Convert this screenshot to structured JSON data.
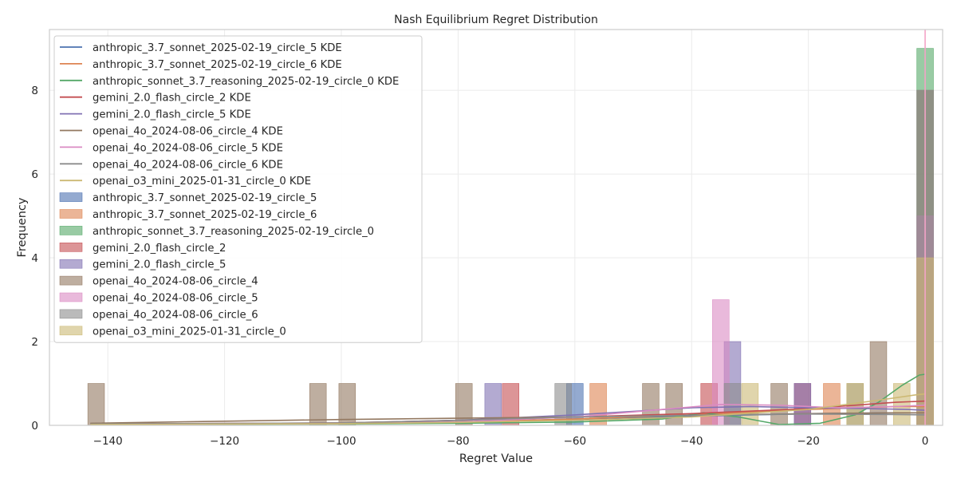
{
  "chart_data": {
    "type": "histogram",
    "title": "Nash Equilibrium Regret Distribution",
    "xlabel": "Regret Value",
    "ylabel": "Frequency",
    "xlim": [
      -150,
      3
    ],
    "ylim": [
      0,
      9.45
    ],
    "xticks": [
      -140,
      -120,
      -100,
      -80,
      -60,
      -40,
      -20,
      0
    ],
    "xtick_labels": [
      "−140",
      "−120",
      "−100",
      "−80",
      "−60",
      "−40",
      "−20",
      "0"
    ],
    "yticks": [
      0,
      2,
      4,
      6,
      8
    ],
    "ytick_labels": [
      "0",
      "2",
      "4",
      "6",
      "8"
    ],
    "grid": true,
    "legend_position": "top-left",
    "vertical_line_at": 0,
    "series": [
      {
        "name": "anthropic_3.7_sonnet_2025-02-19_circle_5",
        "kde_label": "anthropic_3.7_sonnet_2025-02-19_circle_5 KDE",
        "color": "#4c72b0",
        "bars": [
          {
            "x": -60,
            "count": 1
          },
          {
            "x": 0,
            "count": 4
          }
        ],
        "kde": [
          [
            -143,
            0.03
          ],
          [
            -100,
            0.05
          ],
          [
            -80,
            0.08
          ],
          [
            -60,
            0.15
          ],
          [
            -40,
            0.22
          ],
          [
            -20,
            0.28
          ],
          [
            -5,
            0.3
          ],
          [
            0,
            0.3
          ]
        ]
      },
      {
        "name": "anthropic_3.7_sonnet_2025-02-19_circle_6",
        "kde_label": "anthropic_3.7_sonnet_2025-02-19_circle_6 KDE",
        "color": "#dd8452",
        "bars": [
          {
            "x": -56,
            "count": 1
          },
          {
            "x": -16,
            "count": 1
          },
          {
            "x": 0,
            "count": 4
          }
        ],
        "kde": [
          [
            -143,
            0.02
          ],
          [
            -100,
            0.04
          ],
          [
            -80,
            0.08
          ],
          [
            -60,
            0.15
          ],
          [
            -40,
            0.25
          ],
          [
            -20,
            0.38
          ],
          [
            -5,
            0.45
          ],
          [
            0,
            0.45
          ]
        ]
      },
      {
        "name": "anthropic_sonnet_3.7_reasoning_2025-02-19_circle_0",
        "kde_label": "anthropic_sonnet_3.7_reasoning_2025-02-19_circle_0 KDE",
        "color": "#55a868",
        "bars": [
          {
            "x": 0,
            "count": 9
          }
        ],
        "kde": [
          [
            -143,
            0.02
          ],
          [
            -100,
            0.03
          ],
          [
            -80,
            0.05
          ],
          [
            -60,
            0.08
          ],
          [
            -45,
            0.15
          ],
          [
            -38,
            0.3
          ],
          [
            -32,
            0.2
          ],
          [
            -25,
            0.02
          ],
          [
            -18,
            0.05
          ],
          [
            -12,
            0.25
          ],
          [
            -8,
            0.55
          ],
          [
            -4,
            0.95
          ],
          [
            -1,
            1.2
          ],
          [
            0,
            1.22
          ]
        ]
      },
      {
        "name": "gemini_2.0_flash_circle_2",
        "kde_label": "gemini_2.0_flash_circle_2 KDE",
        "color": "#c44e52",
        "bars": [
          {
            "x": -71,
            "count": 1
          },
          {
            "x": -37,
            "count": 1
          },
          {
            "x": -21,
            "count": 1
          },
          {
            "x": 0,
            "count": 4
          }
        ],
        "kde": [
          [
            -143,
            0.03
          ],
          [
            -100,
            0.06
          ],
          [
            -80,
            0.12
          ],
          [
            -60,
            0.2
          ],
          [
            -40,
            0.28
          ],
          [
            -20,
            0.4
          ],
          [
            -5,
            0.55
          ],
          [
            0,
            0.58
          ]
        ]
      },
      {
        "name": "gemini_2.0_flash_circle_5",
        "kde_label": "gemini_2.0_flash_circle_5 KDE",
        "color": "#8172b3",
        "bars": [
          {
            "x": -74,
            "count": 1
          },
          {
            "x": -33,
            "count": 2
          },
          {
            "x": -21,
            "count": 1
          },
          {
            "x": 0,
            "count": 5
          }
        ],
        "kde": [
          [
            -143,
            0.03
          ],
          [
            -100,
            0.05
          ],
          [
            -80,
            0.12
          ],
          [
            -60,
            0.25
          ],
          [
            -40,
            0.42
          ],
          [
            -30,
            0.45
          ],
          [
            -20,
            0.42
          ],
          [
            -10,
            0.4
          ],
          [
            -3,
            0.38
          ],
          [
            0,
            0.36
          ]
        ]
      },
      {
        "name": "openai_4o_2024-08-06_circle_4",
        "kde_label": "openai_4o_2024-08-06_circle_4 KDE",
        "color": "#937860",
        "bars": [
          {
            "x": -142,
            "count": 1
          },
          {
            "x": -104,
            "count": 1
          },
          {
            "x": -99,
            "count": 1
          },
          {
            "x": -79,
            "count": 1
          },
          {
            "x": -47,
            "count": 1
          },
          {
            "x": -43,
            "count": 1
          },
          {
            "x": -25,
            "count": 1
          },
          {
            "x": -8,
            "count": 2
          },
          {
            "x": 0,
            "count": 8
          }
        ],
        "kde": [
          [
            -143,
            0.05
          ],
          [
            -120,
            0.1
          ],
          [
            -100,
            0.14
          ],
          [
            -80,
            0.17
          ],
          [
            -60,
            0.2
          ],
          [
            -40,
            0.24
          ],
          [
            -20,
            0.28
          ],
          [
            -5,
            0.3
          ],
          [
            0,
            0.3
          ]
        ]
      },
      {
        "name": "openai_4o_2024-08-06_circle_5",
        "kde_label": "openai_4o_2024-08-06_circle_5 KDE",
        "color": "#da8bc3",
        "bars": [
          {
            "x": -35,
            "count": 3
          },
          {
            "x": 0,
            "count": 5
          }
        ],
        "kde": [
          [
            -143,
            0.02
          ],
          [
            -100,
            0.04
          ],
          [
            -80,
            0.08
          ],
          [
            -60,
            0.2
          ],
          [
            -45,
            0.38
          ],
          [
            -35,
            0.5
          ],
          [
            -25,
            0.48
          ],
          [
            -15,
            0.42
          ],
          [
            -5,
            0.45
          ],
          [
            0,
            0.48
          ]
        ]
      },
      {
        "name": "openai_4o_2024-08-06_circle_6",
        "kde_label": "openai_4o_2024-08-06_circle_6 KDE",
        "color": "#8c8c8c",
        "bars": [
          {
            "x": -62,
            "count": 1
          },
          {
            "x": -33,
            "count": 1
          },
          {
            "x": -12,
            "count": 1
          },
          {
            "x": 0,
            "count": 8
          }
        ],
        "kde": [
          [
            -143,
            0.03
          ],
          [
            -100,
            0.06
          ],
          [
            -80,
            0.12
          ],
          [
            -60,
            0.2
          ],
          [
            -40,
            0.24
          ],
          [
            -20,
            0.27
          ],
          [
            -5,
            0.26
          ],
          [
            0,
            0.25
          ]
        ]
      },
      {
        "name": "openai_o3_mini_2025-01-31_circle_0",
        "kde_label": "openai_o3_mini_2025-01-31_circle_0 KDE",
        "color": "#ccb974",
        "bars": [
          {
            "x": -30,
            "count": 1
          },
          {
            "x": -12,
            "count": 1
          },
          {
            "x": -4,
            "count": 1
          },
          {
            "x": 0,
            "count": 4
          }
        ],
        "kde": [
          [
            -143,
            0.02
          ],
          [
            -100,
            0.04
          ],
          [
            -80,
            0.07
          ],
          [
            -60,
            0.12
          ],
          [
            -40,
            0.2
          ],
          [
            -20,
            0.38
          ],
          [
            -8,
            0.6
          ],
          [
            -2,
            0.72
          ],
          [
            0,
            0.75
          ]
        ]
      }
    ]
  }
}
